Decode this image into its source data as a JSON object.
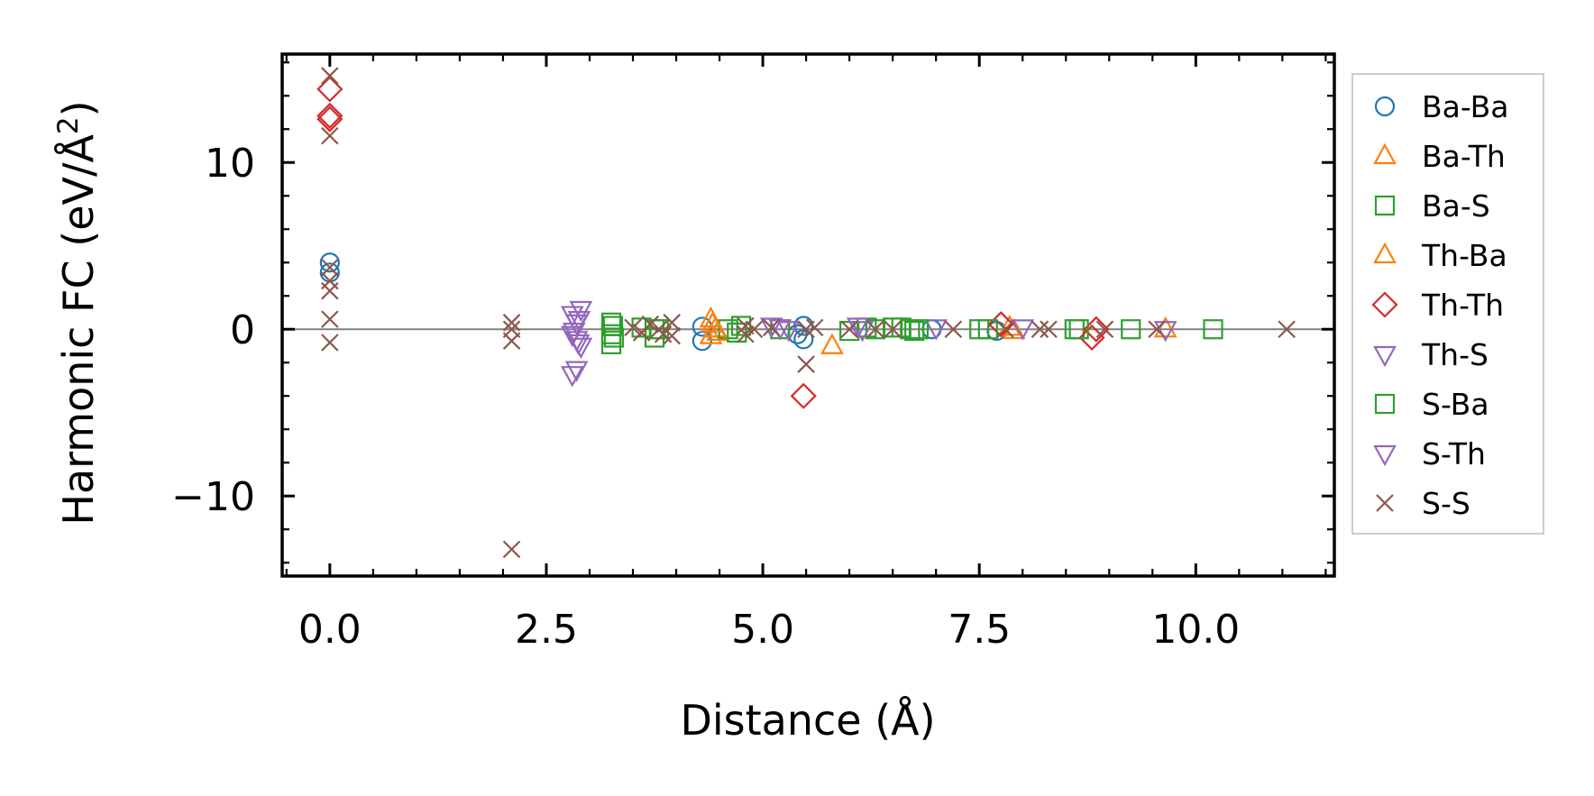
{
  "chart_data": {
    "type": "scatter",
    "title": "",
    "xlabel": "Distance (Å)",
    "ylabel_main": "Harmonic FC (eV/Å",
    "ylabel_sup": "2",
    "ylabel_close": ")",
    "xlim": [
      -0.55,
      11.6
    ],
    "ylim": [
      -14.8,
      16.5
    ],
    "xticks": [
      0.0,
      2.5,
      5.0,
      7.5,
      10.0
    ],
    "xtick_labels": [
      "0.0",
      "2.5",
      "5.0",
      "7.5",
      "10.0"
    ],
    "yticks": [
      -10,
      0,
      10
    ],
    "ytick_labels": [
      "−10",
      "0",
      "10"
    ],
    "zero_line": 0,
    "legend_position": "outside-right",
    "series": [
      {
        "name": "Ba-Ba",
        "marker": "circle",
        "color": "#1f77b4",
        "points": [
          [
            0.0,
            4.0
          ],
          [
            0.0,
            3.4
          ],
          [
            4.3,
            0.15
          ],
          [
            4.3,
            -0.7
          ],
          [
            5.4,
            -0.3
          ],
          [
            5.47,
            0.2
          ],
          [
            5.47,
            -0.6
          ],
          [
            6.95,
            0.0
          ],
          [
            7.7,
            -0.1
          ]
        ]
      },
      {
        "name": "Ba-Th",
        "marker": "triangle-up",
        "color": "#ff7f0e",
        "points": [
          [
            4.4,
            0.6
          ],
          [
            4.4,
            -0.4
          ],
          [
            4.45,
            0.0
          ],
          [
            5.8,
            -1.0
          ],
          [
            7.9,
            -0.1
          ]
        ]
      },
      {
        "name": "Ba-S",
        "marker": "square",
        "color": "#2ca02c",
        "points": [
          [
            3.25,
            0.4
          ],
          [
            3.25,
            -0.3
          ],
          [
            3.25,
            -0.9
          ],
          [
            3.6,
            0.1
          ],
          [
            3.75,
            0.0
          ],
          [
            3.75,
            -0.5
          ],
          [
            4.6,
            0.0
          ],
          [
            4.75,
            0.2
          ],
          [
            5.2,
            0.0
          ],
          [
            6.0,
            -0.1
          ],
          [
            6.2,
            0.1
          ],
          [
            6.5,
            0.1
          ],
          [
            6.6,
            0.1
          ],
          [
            6.7,
            0.0
          ],
          [
            6.75,
            -0.1
          ],
          [
            7.5,
            0.0
          ],
          [
            8.6,
            0.0
          ],
          [
            9.25,
            0.0
          ],
          [
            10.2,
            0.0
          ]
        ]
      },
      {
        "name": "Th-Ba",
        "marker": "triangle-up",
        "color": "#ff7f0e",
        "points": [
          [
            4.42,
            0.3
          ],
          [
            4.48,
            -0.2
          ],
          [
            7.85,
            0.1
          ],
          [
            9.65,
            0.0
          ]
        ]
      },
      {
        "name": "Th-Th",
        "marker": "diamond",
        "color": "#d62728",
        "points": [
          [
            0.0,
            14.4
          ],
          [
            0.0,
            12.8
          ],
          [
            0.0,
            12.6
          ],
          [
            5.47,
            -4.0
          ],
          [
            7.75,
            0.3
          ],
          [
            8.8,
            -0.5
          ],
          [
            8.85,
            0.0
          ]
        ]
      },
      {
        "name": "Th-S",
        "marker": "triangle-down",
        "color": "#9467bd",
        "points": [
          [
            2.8,
            0.9
          ],
          [
            2.85,
            0.4
          ],
          [
            2.8,
            -0.3
          ],
          [
            2.85,
            -0.6
          ],
          [
            2.9,
            -1.0
          ],
          [
            2.85,
            -2.4
          ],
          [
            2.8,
            -2.7
          ],
          [
            5.1,
            0.2
          ],
          [
            5.3,
            0.0
          ],
          [
            6.1,
            0.2
          ],
          [
            7.0,
            0.1
          ],
          [
            8.0,
            0.1
          ]
        ]
      },
      {
        "name": "S-Ba",
        "marker": "square",
        "color": "#2ca02c",
        "points": [
          [
            3.27,
            0.2
          ],
          [
            3.28,
            -0.5
          ],
          [
            3.8,
            0.0
          ],
          [
            4.7,
            -0.2
          ],
          [
            6.3,
            0.0
          ],
          [
            6.8,
            0.0
          ],
          [
            7.6,
            0.0
          ],
          [
            8.65,
            0.0
          ]
        ]
      },
      {
        "name": "S-Th",
        "marker": "triangle-down",
        "color": "#9467bd",
        "points": [
          [
            2.9,
            1.2
          ],
          [
            2.88,
            0.6
          ],
          [
            2.82,
            -0.1
          ],
          [
            2.87,
            -0.8
          ],
          [
            5.2,
            0.1
          ],
          [
            6.15,
            0.0
          ],
          [
            9.65,
            0.0
          ]
        ]
      },
      {
        "name": "S-S",
        "marker": "x",
        "color": "#8c564b",
        "points": [
          [
            0.0,
            15.2
          ],
          [
            0.0,
            11.6
          ],
          [
            0.0,
            3.7
          ],
          [
            0.0,
            2.9
          ],
          [
            0.0,
            2.3
          ],
          [
            0.0,
            0.6
          ],
          [
            0.0,
            -0.8
          ],
          [
            2.1,
            0.4
          ],
          [
            2.1,
            0.0
          ],
          [
            2.1,
            -0.7
          ],
          [
            2.1,
            -13.2
          ],
          [
            3.5,
            0.1
          ],
          [
            3.6,
            -0.2
          ],
          [
            3.7,
            0.3
          ],
          [
            3.8,
            0.0
          ],
          [
            3.85,
            -0.3
          ],
          [
            3.95,
            0.4
          ],
          [
            3.95,
            -0.4
          ],
          [
            4.8,
            0.2
          ],
          [
            4.8,
            -0.3
          ],
          [
            4.9,
            0.0
          ],
          [
            5.1,
            0.1
          ],
          [
            5.5,
            0.0
          ],
          [
            5.5,
            -2.1
          ],
          [
            5.6,
            0.1
          ],
          [
            6.0,
            0.0
          ],
          [
            6.3,
            0.0
          ],
          [
            6.5,
            0.0
          ],
          [
            7.2,
            0.0
          ],
          [
            7.8,
            0.0
          ],
          [
            8.2,
            0.0
          ],
          [
            8.3,
            0.0
          ],
          [
            8.95,
            0.0
          ],
          [
            9.55,
            0.0
          ],
          [
            11.05,
            0.0
          ]
        ]
      }
    ]
  }
}
